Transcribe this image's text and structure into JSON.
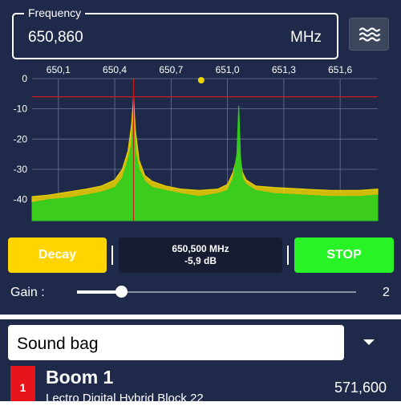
{
  "frequency": {
    "legend": "Frequency",
    "value": "650,860",
    "unit": "MHz"
  },
  "icons": {
    "wave": "waves-icon",
    "dropdown": "chevron-down-icon"
  },
  "colors": {
    "panel_bg": "#1f2a4b",
    "decay": "#ffd400",
    "stop": "#27f326",
    "spectrum_green": "#33cc1f",
    "peak_yellow": "#f0d400",
    "threshold_red": "#c81e1e",
    "badge_red": "#e8141b"
  },
  "controls": {
    "decay_label": "Decay",
    "stop_label": "STOP"
  },
  "readout": {
    "freq": "650,500 MHz",
    "level": "-5,9 dB"
  },
  "gain": {
    "label": "Gain :",
    "value": "2",
    "slider_fraction": 0.16
  },
  "sound_bag": {
    "selected": "Sound bag"
  },
  "item": {
    "number": "1",
    "title": "Boom 1",
    "subtitle": "Lectro Digital Hybrid Block 22",
    "frequency": "571,600"
  },
  "chart_data": {
    "type": "area",
    "x_tick_labels": [
      "650,1",
      "650,4",
      "650,7",
      "651,0",
      "651,3",
      "651,6"
    ],
    "x_ticks": [
      650.1,
      650.4,
      650.7,
      651.0,
      651.3,
      651.6
    ],
    "y_tick_labels": [
      "0",
      "-10",
      "-20",
      "-30",
      "-40"
    ],
    "y_ticks": [
      0,
      -10,
      -20,
      -30,
      -40
    ],
    "xlim": [
      649.96,
      651.8
    ],
    "ylim": [
      -47,
      0
    ],
    "threshold_db": -6,
    "marker_freq": 650.5,
    "tuned_freq": 650.86,
    "grid": true,
    "series": [
      {
        "style": "peak-hold",
        "x": [
          649.96,
          650.05,
          650.15,
          650.25,
          650.33,
          650.4,
          650.44,
          650.47,
          650.49,
          650.5,
          650.51,
          650.53,
          650.56,
          650.6,
          650.67,
          650.75,
          650.85,
          650.95,
          651.0,
          651.03,
          651.05,
          651.06,
          651.07,
          651.08,
          651.1,
          651.15,
          651.25,
          651.4,
          651.55,
          651.7,
          651.8
        ],
        "y": [
          -39,
          -38.5,
          -37.5,
          -36.5,
          -35.5,
          -33.5,
          -30,
          -24,
          -15,
          -5.9,
          -17,
          -27,
          -32,
          -34,
          -35.5,
          -36.5,
          -37,
          -36.5,
          -35,
          -31,
          -26,
          -23,
          -27,
          -31,
          -33.5,
          -35.5,
          -36,
          -36.5,
          -37,
          -37,
          -36.5
        ]
      },
      {
        "style": "live",
        "x": [
          649.96,
          650.05,
          650.15,
          650.25,
          650.33,
          650.4,
          650.44,
          650.47,
          650.49,
          650.5,
          650.51,
          650.53,
          650.56,
          650.6,
          650.67,
          650.75,
          650.85,
          650.95,
          651.0,
          651.03,
          651.05,
          651.06,
          651.07,
          651.08,
          651.1,
          651.15,
          651.25,
          651.4,
          651.55,
          651.7,
          651.8
        ],
        "y": [
          -41,
          -40,
          -39.5,
          -38.5,
          -37.5,
          -36,
          -33,
          -27,
          -22,
          -12,
          -24,
          -30,
          -34,
          -36,
          -37,
          -38,
          -39,
          -38,
          -37,
          -33,
          -25,
          -9,
          -26,
          -33,
          -35,
          -37,
          -38,
          -38.5,
          -39,
          -39,
          -38.5
        ]
      }
    ]
  }
}
